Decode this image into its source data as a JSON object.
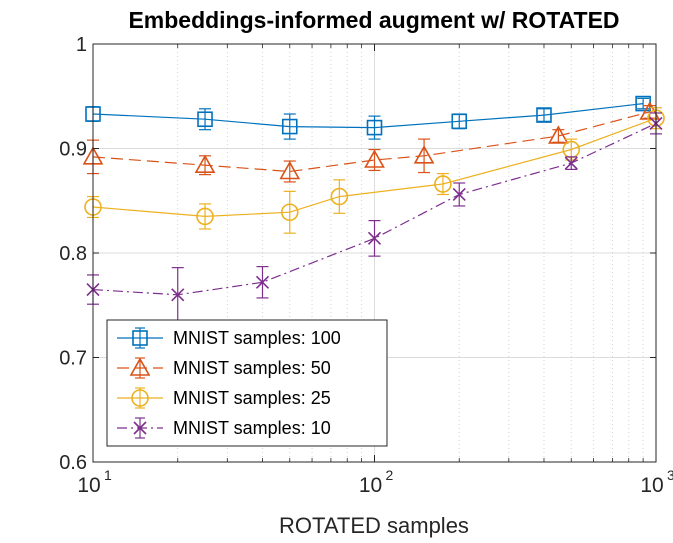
{
  "chart_data": {
    "type": "line",
    "title": "Embeddings-informed augment w/ ROTATED",
    "xlabel": "ROTATED samples",
    "ylabel": "",
    "xscale": "log",
    "xlim": [
      10,
      1000
    ],
    "ylim": [
      0.6,
      1.0
    ],
    "grid": true,
    "legend_position": "bottom-left",
    "yticks": [
      0.6,
      0.7,
      0.8,
      0.9,
      1.0
    ],
    "ytick_labels": [
      "0.6",
      "0.7",
      "0.8",
      "0.9",
      "1"
    ],
    "xticks": [
      10,
      100,
      1000
    ],
    "xtick_labels": [
      {
        "base": "10",
        "exp": "1"
      },
      {
        "base": "10",
        "exp": "2"
      },
      {
        "base": "10",
        "exp": "3"
      }
    ],
    "series": [
      {
        "name": "MNIST samples: 100",
        "color": "#0072BD",
        "marker": "square",
        "dash": "",
        "x": [
          10,
          25,
          50,
          100,
          200,
          400,
          900
        ],
        "y": [
          0.933,
          0.928,
          0.921,
          0.92,
          0.926,
          0.932,
          0.943
        ],
        "err": [
          0.007,
          0.01,
          0.012,
          0.011,
          0.007,
          0.006,
          0.005
        ]
      },
      {
        "name": "MNIST samples: 50",
        "color": "#D95319",
        "marker": "triangle",
        "dash": "12,6",
        "x": [
          10,
          25,
          50,
          100,
          150,
          450,
          950
        ],
        "y": [
          0.892,
          0.884,
          0.878,
          0.889,
          0.893,
          0.912,
          0.935
        ],
        "err": [
          0.016,
          0.009,
          0.01,
          0.01,
          0.016,
          0.006,
          0.006
        ]
      },
      {
        "name": "MNIST samples: 25",
        "color": "#EDB120",
        "marker": "circle",
        "dash": "",
        "x": [
          10,
          25,
          50,
          75,
          175,
          500,
          1000
        ],
        "y": [
          0.844,
          0.835,
          0.839,
          0.854,
          0.866,
          0.899,
          0.929
        ],
        "err": [
          0.01,
          0.012,
          0.02,
          0.016,
          0.01,
          0.01,
          0.01
        ]
      },
      {
        "name": "MNIST samples: 10",
        "color": "#7E2F8E",
        "marker": "x",
        "dash": "10,4,2,4",
        "x": [
          10,
          20,
          40,
          100,
          200,
          500,
          1000
        ],
        "y": [
          0.765,
          0.76,
          0.772,
          0.814,
          0.856,
          0.886,
          0.924
        ],
        "err": [
          0.014,
          0.026,
          0.015,
          0.017,
          0.011,
          0.006,
          0.01
        ]
      }
    ]
  }
}
